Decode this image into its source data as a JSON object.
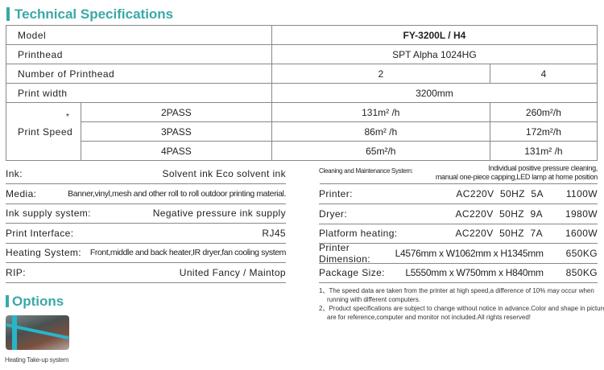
{
  "title": "Technical Specifications",
  "table": {
    "model_label": "Model",
    "model": "FY-3200L / H4",
    "printhead_label": "Printhead",
    "printhead": "SPT Alpha 1024HG",
    "num_label": "Number of Printhead",
    "num": [
      "2",
      "4"
    ],
    "width_label": "Print width",
    "width": "3200mm",
    "speed_label": "Print Speed",
    "speed_mark": "*",
    "speeds": [
      {
        "pass": "2PASS",
        "a": "131m² /h",
        "b": "260m²/h"
      },
      {
        "pass": "3PASS",
        "a": "86m² /h",
        "b": "172m²/h"
      },
      {
        "pass": "4PASS",
        "a": "65m²/h",
        "b": "131m² /h"
      }
    ]
  },
  "left": [
    {
      "label": "Ink:",
      "value": "Solvent ink   Eco solvent ink"
    },
    {
      "label": "Media:",
      "value": "Banner,vinyl,mesh and other roll to roll outdoor printing material."
    },
    {
      "label": "Ink supply system:",
      "value": "Negative pressure ink supply"
    },
    {
      "label": "Print Interface:",
      "value": "RJ45"
    },
    {
      "label": "Heating System:",
      "value": "Front,middle and back heater,IR dryer,fan cooling system"
    },
    {
      "label": "RIP:",
      "value": "United Fancy / Maintop"
    }
  ],
  "cleaning": {
    "label": "Cleaning and Maintenance System:",
    "line1": "Individual positive pressure cleaning,",
    "line2": "manual one-piece capping,LED lamp at home position"
  },
  "right": [
    {
      "label": "Printer:",
      "value": "AC220V  50HZ  5A",
      "extra": "1100W"
    },
    {
      "label": "Dryer:",
      "value": "AC220V  50HZ  9A",
      "extra": "1980W"
    },
    {
      "label": "Platform heating:",
      "value": "AC220V  50HZ  7A",
      "extra": "1600W"
    },
    {
      "label": "Printer Dimension:",
      "value": "L4576mm x W1062mm x H1345mm",
      "extra": "650KG"
    },
    {
      "label": "Package Size:",
      "value": "L5550mm x W750mm x H840mm",
      "extra": "850KG"
    }
  ],
  "notes": [
    "1、The speed data are taken from the printer at high speed,a difference of 10% may occur when running with different computers.",
    "2、Product specifications are subject to change without notice in advance.Color and shape in picture are for reference,computer and monitor not included.All rights reserved!"
  ],
  "options": {
    "title": "Options",
    "caption": "Heating Take-up system"
  },
  "accent": "#3aa8a8"
}
